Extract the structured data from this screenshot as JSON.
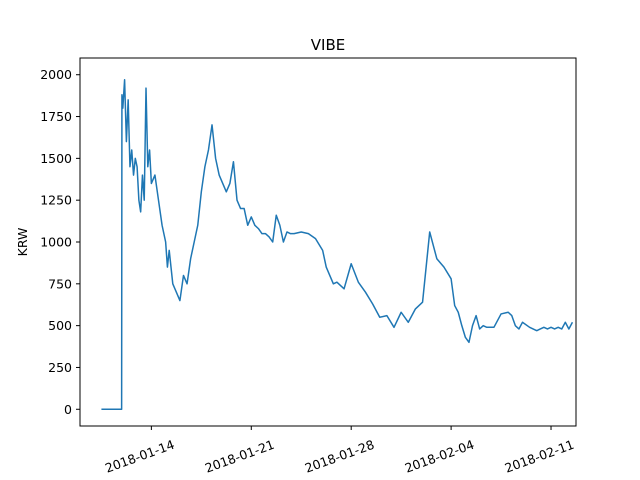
{
  "chart_data": {
    "type": "line",
    "title": "VIBE",
    "xlabel": "",
    "ylabel": "KRW",
    "xlim": [
      "2018-01-09T00:00",
      "2018-02-12T18:00"
    ],
    "ylim": [
      -100,
      2100
    ],
    "xticks": [
      "2018-01-14",
      "2018-01-21",
      "2018-01-28",
      "2018-02-04",
      "2018-02-11"
    ],
    "yticks": [
      0,
      250,
      500,
      750,
      1000,
      1250,
      1500,
      1750,
      2000
    ],
    "grid": false,
    "legend": "none",
    "series": [
      {
        "color": "#1f77b4",
        "x": [
          "2018-01-10T12:00",
          "2018-01-11T22:00",
          "2018-01-11T22:30",
          "2018-01-12T00:00",
          "2018-01-12T03:00",
          "2018-01-12T06:00",
          "2018-01-12T09:00",
          "2018-01-12T12:00",
          "2018-01-12T15:00",
          "2018-01-12T18:00",
          "2018-01-12T21:00",
          "2018-01-13T00:00",
          "2018-01-13T03:00",
          "2018-01-13T06:00",
          "2018-01-13T09:00",
          "2018-01-13T12:00",
          "2018-01-13T15:00",
          "2018-01-13T18:00",
          "2018-01-13T21:00",
          "2018-01-14T00:00",
          "2018-01-14T06:00",
          "2018-01-14T12:00",
          "2018-01-14T18:00",
          "2018-01-15T00:00",
          "2018-01-15T03:00",
          "2018-01-15T06:00",
          "2018-01-15T12:00",
          "2018-01-15T18:00",
          "2018-01-16T00:00",
          "2018-01-16T06:00",
          "2018-01-16T12:00",
          "2018-01-16T18:00",
          "2018-01-17T00:00",
          "2018-01-17T06:00",
          "2018-01-17T12:00",
          "2018-01-17T18:00",
          "2018-01-18T00:00",
          "2018-01-18T06:00",
          "2018-01-18T12:00",
          "2018-01-18T18:00",
          "2018-01-19T00:00",
          "2018-01-19T06:00",
          "2018-01-19T12:00",
          "2018-01-19T18:00",
          "2018-01-20T00:00",
          "2018-01-20T06:00",
          "2018-01-20T12:00",
          "2018-01-20T18:00",
          "2018-01-21T00:00",
          "2018-01-21T06:00",
          "2018-01-21T12:00",
          "2018-01-21T18:00",
          "2018-01-22T00:00",
          "2018-01-22T06:00",
          "2018-01-22T12:00",
          "2018-01-22T18:00",
          "2018-01-23T00:00",
          "2018-01-23T06:00",
          "2018-01-23T12:00",
          "2018-01-23T18:00",
          "2018-01-24T00:00",
          "2018-01-24T12:00",
          "2018-01-25T00:00",
          "2018-01-25T12:00",
          "2018-01-26T00:00",
          "2018-01-26T06:00",
          "2018-01-26T12:00",
          "2018-01-26T18:00",
          "2018-01-27T00:00",
          "2018-01-27T12:00",
          "2018-01-28T00:00",
          "2018-01-28T12:00",
          "2018-01-29T00:00",
          "2018-01-29T12:00",
          "2018-01-30T00:00",
          "2018-01-30T12:00",
          "2018-01-31T00:00",
          "2018-01-31T12:00",
          "2018-02-01T00:00",
          "2018-02-01T12:00",
          "2018-02-02T00:00",
          "2018-02-02T12:00",
          "2018-02-03T00:00",
          "2018-02-03T12:00",
          "2018-02-04T00:00",
          "2018-02-04T06:00",
          "2018-02-04T12:00",
          "2018-02-04T18:00",
          "2018-02-05T00:00",
          "2018-02-05T06:00",
          "2018-02-05T12:00",
          "2018-02-05T18:00",
          "2018-02-06T00:00",
          "2018-02-06T06:00",
          "2018-02-06T12:00",
          "2018-02-06T18:00",
          "2018-02-07T00:00",
          "2018-02-07T12:00",
          "2018-02-08T00:00",
          "2018-02-08T06:00",
          "2018-02-08T12:00",
          "2018-02-08T18:00",
          "2018-02-09T00:00",
          "2018-02-09T12:00",
          "2018-02-10T00:00",
          "2018-02-10T06:00",
          "2018-02-10T12:00",
          "2018-02-10T18:00",
          "2018-02-11T00:00",
          "2018-02-11T06:00",
          "2018-02-11T12:00",
          "2018-02-11T18:00",
          "2018-02-12T00:00",
          "2018-02-12T06:00",
          "2018-02-12T12:00"
        ],
        "y": [
          0,
          0,
          1880,
          1800,
          1970,
          1600,
          1850,
          1450,
          1550,
          1400,
          1500,
          1450,
          1250,
          1180,
          1400,
          1250,
          1920,
          1450,
          1550,
          1350,
          1400,
          1250,
          1100,
          1000,
          850,
          950,
          750,
          700,
          650,
          800,
          750,
          900,
          1000,
          1100,
          1300,
          1450,
          1550,
          1700,
          1500,
          1400,
          1350,
          1300,
          1350,
          1480,
          1250,
          1200,
          1200,
          1100,
          1150,
          1100,
          1080,
          1050,
          1050,
          1030,
          1000,
          1160,
          1100,
          1000,
          1060,
          1050,
          1050,
          1060,
          1050,
          1020,
          950,
          850,
          800,
          750,
          760,
          720,
          870,
          760,
          700,
          630,
          550,
          560,
          490,
          580,
          520,
          600,
          640,
          1060,
          900,
          850,
          780,
          620,
          580,
          500,
          430,
          400,
          500,
          560,
          480,
          500,
          490,
          490,
          490,
          570,
          580,
          560,
          500,
          480,
          520,
          490,
          470,
          480,
          490,
          480,
          490,
          480,
          490,
          480,
          520,
          480,
          520
        ]
      }
    ]
  }
}
